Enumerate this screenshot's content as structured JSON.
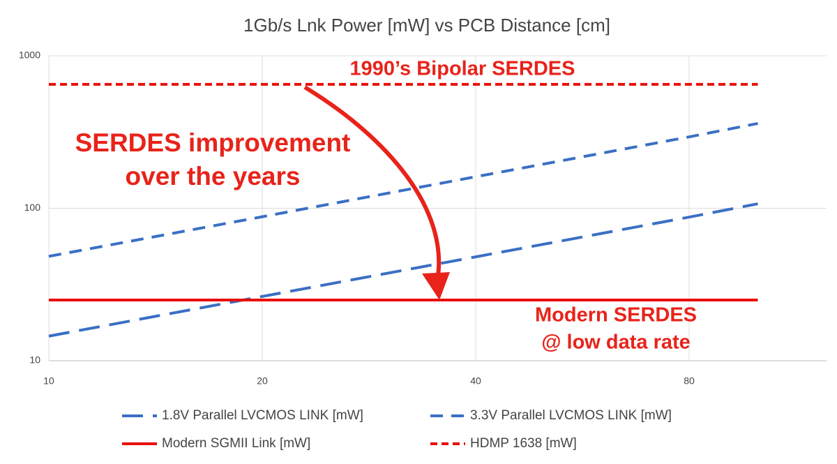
{
  "chart_data": {
    "type": "line",
    "title": "1Gb/s Lnk Power [mW] vs PCB Distance [cm]",
    "x": [
      10,
      20,
      40,
      80,
      100
    ],
    "xscale": "log",
    "yscale": "log",
    "xlim": [
      10,
      125
    ],
    "ylim": [
      10,
      1000
    ],
    "xticks": [
      10,
      20,
      40,
      80
    ],
    "yticks": [
      10,
      100,
      1000
    ],
    "grid": true,
    "series": [
      {
        "name": "1.8V Parallel LVCMOS LINK [mW]",
        "color": "#3a6fc4",
        "line_style": "long-dash",
        "values": [
          14.5,
          26.4,
          48,
          87.5,
          107
        ]
      },
      {
        "name": "3.3V Parallel LVCMOS LINK [mW]",
        "color": "#3a6fc4",
        "line_style": "dash",
        "values": [
          48.4,
          88,
          161,
          294,
          360
        ]
      },
      {
        "name": "Modern SGMII Link [mW]",
        "color": "#e8100a",
        "line_style": "solid",
        "values": [
          25,
          25,
          25,
          25,
          25
        ]
      },
      {
        "name": "HDMP 1638 [mW]",
        "color": "#e8100a",
        "line_style": "short-dash",
        "values": [
          650,
          650,
          650,
          650,
          650
        ]
      }
    ],
    "annotations": [
      "1990’s Bipolar SERDES",
      "SERDES improvement",
      "over the years",
      "Modern SERDES",
      "@ low data rate"
    ]
  }
}
